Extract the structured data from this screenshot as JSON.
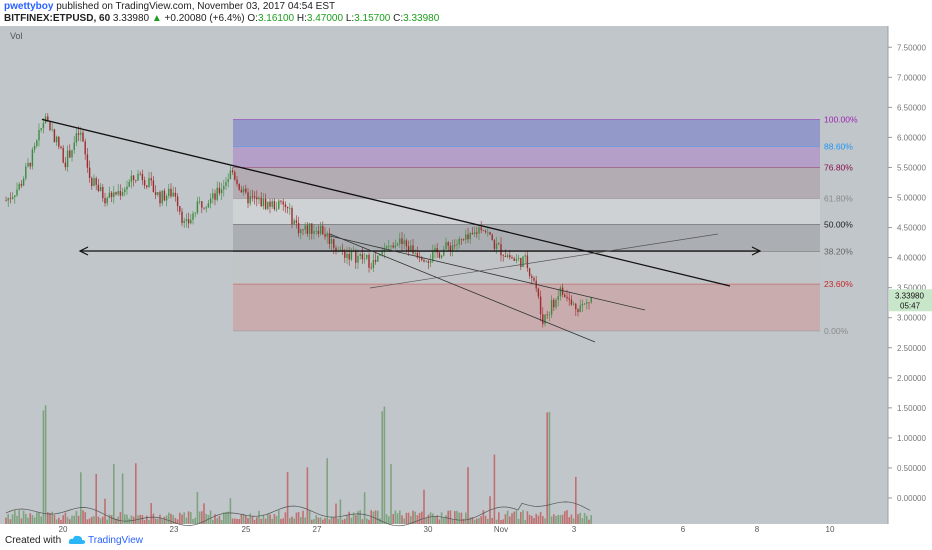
{
  "header": {
    "user": "pwettyboy",
    "published": "published on TradingView.com, November 03, 2017 04:54 EST",
    "symbol": "BITFINEX:ETPUSD, 60",
    "last": "3.33980",
    "change": "+0.20080 (+6.4%)",
    "open_label": "O:",
    "open": "3.16100",
    "high_label": "H:",
    "high": "3.47000",
    "low_label": "L:",
    "low": "3.15700",
    "close_label": "C:",
    "close": "3.33980"
  },
  "footer": {
    "created_with": "Created with",
    "brand": "TradingView"
  },
  "chart_data": {
    "type": "candlestick",
    "symbol": "BITFINEX:ETPUSD",
    "interval": "60",
    "volume_label": "Vol",
    "price_axis": {
      "ticks": [
        "7.50000",
        "7.00000",
        "6.50000",
        "6.00000",
        "5.50000",
        "5.00000",
        "4.50000",
        "4.00000",
        "3.50000",
        "3.00000",
        "2.50000",
        "2.00000",
        "1.50000",
        "1.00000",
        "0.50000",
        "0.00000"
      ],
      "values": [
        7.5,
        7.0,
        6.5,
        6.0,
        5.5,
        5.0,
        4.5,
        4.0,
        3.5,
        3.0,
        2.5,
        2.0,
        1.5,
        1.0,
        0.5,
        0.0
      ]
    },
    "time_axis": {
      "ticks": [
        "20",
        "23",
        "25",
        "27",
        "30",
        "Nov",
        "3",
        "6",
        "8",
        "10"
      ]
    },
    "price_label": "3.33980",
    "countdown": "05:47",
    "fib_levels": [
      {
        "label": "100.00%",
        "price": 6.3,
        "color": "#9c27b0"
      },
      {
        "label": "88.60%",
        "price": 5.85,
        "color": "#2196f3"
      },
      {
        "label": "76.80%",
        "price": 5.5,
        "color": "#880e4f"
      },
      {
        "label": "61.80%",
        "price": 4.98,
        "color": "#8a8a8a"
      },
      {
        "label": "50.00%",
        "price": 4.55,
        "color": "#222222"
      },
      {
        "label": "38.20%",
        "price": 4.1,
        "color": "#666666"
      },
      {
        "label": "23.60%",
        "price": 3.56,
        "color": "#c62828"
      },
      {
        "label": "0.00%",
        "price": 2.78,
        "color": "#8a8a8a"
      }
    ],
    "colors": {
      "up": "#3d8a3d",
      "down": "#9e2a2a",
      "vol_up": "#7fa37f",
      "vol_down": "#c07070",
      "background": "#c0c6ca",
      "last_price": "#c8e6c9"
    }
  }
}
